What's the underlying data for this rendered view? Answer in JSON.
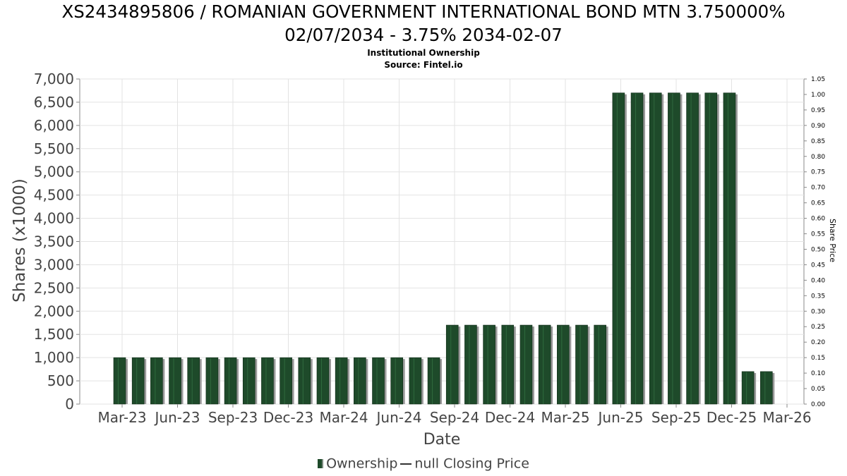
{
  "chart_data": {
    "type": "bar",
    "title_line1": "XS2434895806 / ROMANIAN GOVERNMENT INTERNATIONAL BOND MTN 3.750000%",
    "title_line2": "02/07/2034 - 3.75% 2034-02-07",
    "subtitle": "Institutional Ownership",
    "source": "Source: Fintel.io",
    "xlabel": "Date",
    "ylabel": "Shares (x1000)",
    "y2label": "Share Price",
    "ylim": [
      0,
      7000
    ],
    "y2lim": [
      0,
      1.05
    ],
    "grid": true,
    "y_ticks": [
      "0",
      "500",
      "1,000",
      "1,500",
      "2,000",
      "2,500",
      "3,000",
      "3,500",
      "4,000",
      "4,500",
      "5,000",
      "5,500",
      "6,000",
      "6,500",
      "7,000"
    ],
    "y2_ticks": [
      "0.00",
      "0.05",
      "0.10",
      "0.15",
      "0.20",
      "0.25",
      "0.30",
      "0.35",
      "0.40",
      "0.45",
      "0.50",
      "0.55",
      "0.60",
      "0.65",
      "0.70",
      "0.75",
      "0.80",
      "0.85",
      "0.90",
      "0.95",
      "1.00",
      "1.05"
    ],
    "x_ticks": [
      "Mar-23",
      "Jun-23",
      "Sep-23",
      "Dec-23",
      "Mar-24",
      "Jun-24",
      "Sep-24",
      "Dec-24",
      "Mar-25",
      "Jun-25",
      "Sep-25",
      "Dec-25",
      "Mar-26"
    ],
    "series": [
      {
        "name": "Ownership",
        "color": "#1e4a2a",
        "values": [
          1000,
          1000,
          1000,
          1000,
          1000,
          1000,
          1000,
          1000,
          1000,
          1000,
          1000,
          1000,
          1000,
          1000,
          1000,
          1000,
          1000,
          1000,
          1700,
          1700,
          1700,
          1700,
          1700,
          1700,
          1700,
          1700,
          1700,
          6700,
          6700,
          6700,
          6700,
          6700,
          6700,
          6700,
          700,
          700
        ]
      }
    ],
    "legend": {
      "ownership_label": "Ownership",
      "price_label": "null Closing Price"
    }
  }
}
